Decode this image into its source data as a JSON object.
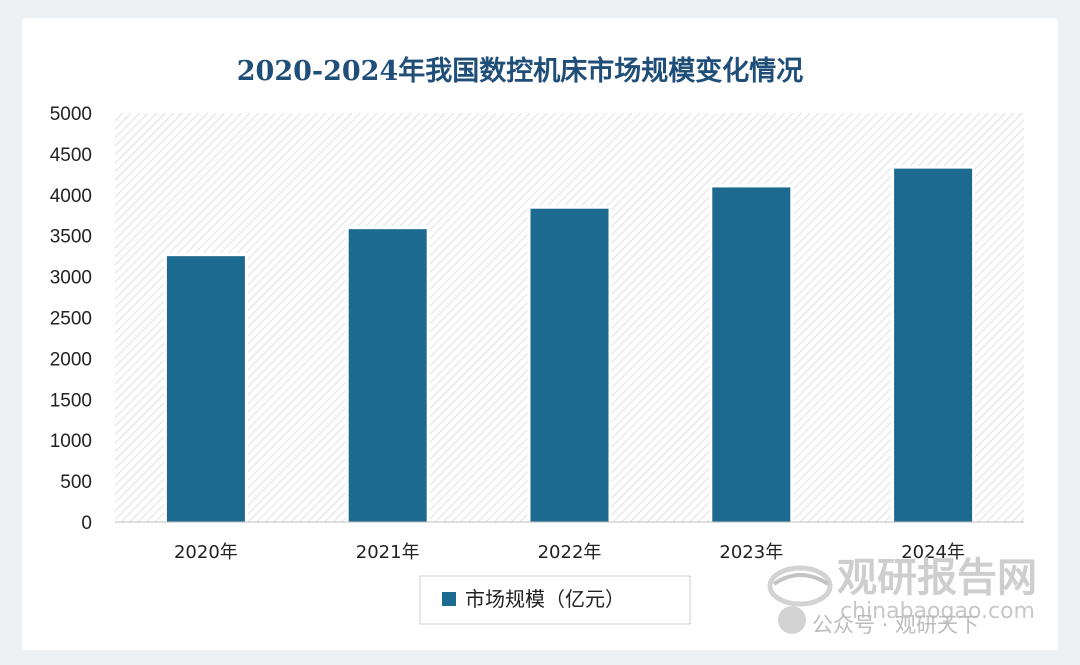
{
  "chart_data": {
    "type": "bar",
    "title": "2020-2024年我国数控机床市场规模变化情况",
    "categories": [
      "2020年",
      "2021年",
      "2022年",
      "2023年",
      "2024年"
    ],
    "series": [
      {
        "name": "市场规模（亿元）",
        "values": [
          3250,
          3580,
          3830,
          4090,
          4320
        ]
      }
    ],
    "ylim": [
      0,
      5000
    ],
    "yticks": [
      0,
      500,
      1000,
      1500,
      2000,
      2500,
      3000,
      3500,
      4000,
      4500,
      5000
    ],
    "xlabel": "",
    "ylabel": "",
    "grid": false,
    "legend_position": "bottom",
    "bar_color": "#1c6a8f"
  },
  "watermark": {
    "brand_cn": "观研报告网",
    "url": "chinabaogao.com",
    "public_account": "公众号 · 观研天下"
  }
}
